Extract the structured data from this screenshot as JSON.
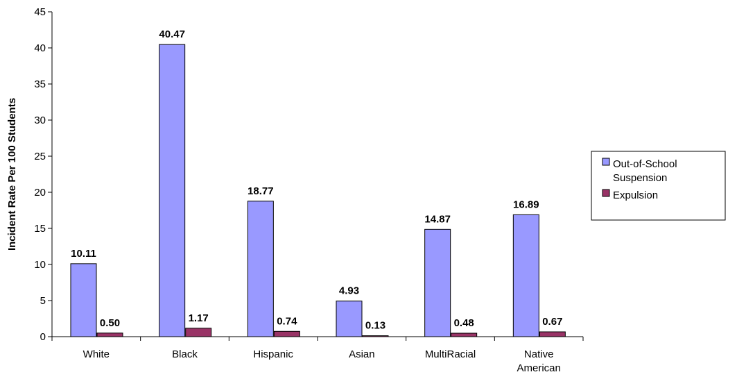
{
  "chart_data": {
    "type": "bar",
    "categories": [
      [
        "White"
      ],
      [
        "Black"
      ],
      [
        "Hispanic"
      ],
      [
        "Asian"
      ],
      [
        "MultiRacial"
      ],
      [
        "Native",
        "American"
      ]
    ],
    "series": [
      {
        "name": "Out-of-School Suspension",
        "name_lines": [
          "Out-of-School",
          "Suspension"
        ],
        "color": "#9999ff",
        "values": [
          10.11,
          40.47,
          18.77,
          4.93,
          14.87,
          16.89
        ],
        "labels": [
          "10.11",
          "40.47",
          "18.77",
          "4.93",
          "14.87",
          "16.89"
        ]
      },
      {
        "name": "Expulsion",
        "name_lines": [
          "Expulsion"
        ],
        "color": "#993366",
        "values": [
          0.5,
          1.17,
          0.74,
          0.13,
          0.48,
          0.67
        ],
        "labels": [
          "0.50",
          "1.17",
          "0.74",
          "0.13",
          "0.48",
          "0.67"
        ]
      }
    ],
    "title": "",
    "xlabel": "",
    "ylabel": "Incident Rate Per 100 Students",
    "ylim": [
      0,
      45
    ],
    "yticks": [
      0,
      5,
      10,
      15,
      20,
      25,
      30,
      35,
      40,
      45
    ],
    "grid": false,
    "legend": "right"
  }
}
